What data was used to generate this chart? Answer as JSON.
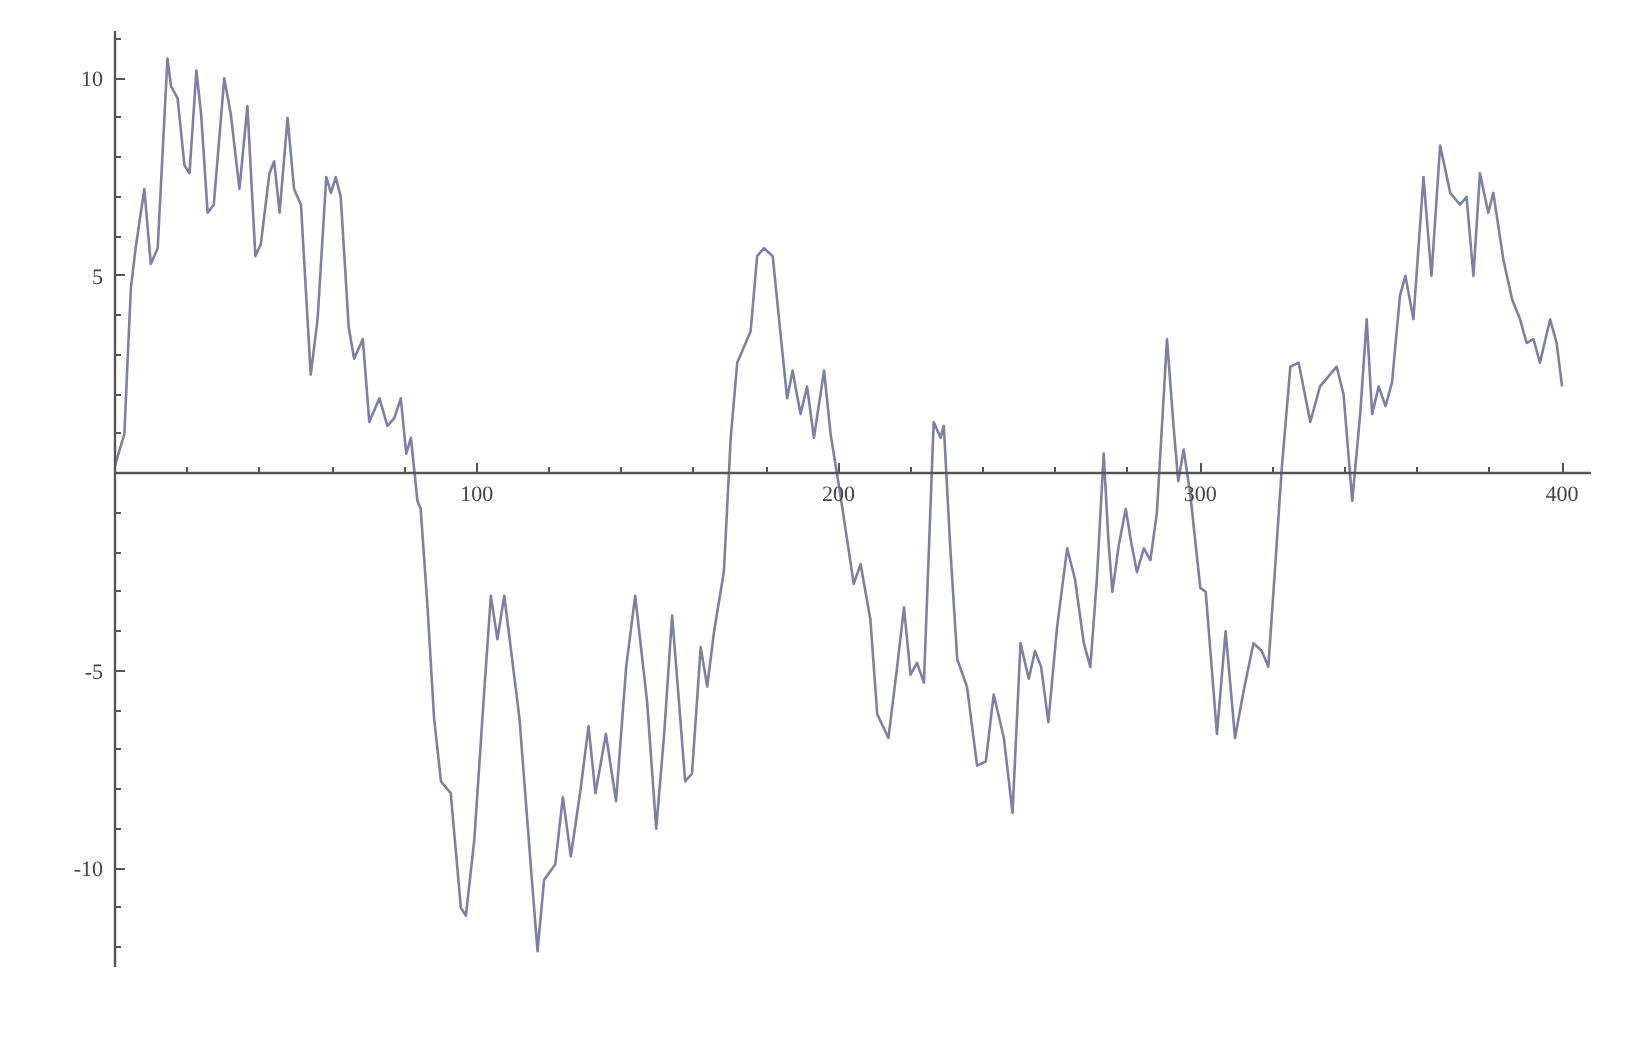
{
  "chart_data": {
    "type": "line",
    "x": [
      0,
      2.6,
      3.5,
      4.4,
      5.7,
      8.1,
      9.9,
      11.8,
      14.5,
      15.5,
      17.3,
      19.2,
      20.6,
      22.5,
      23.8,
      25.6,
      27.3,
      30.2,
      32,
      34.4,
      36.6,
      38.8,
      40.3,
      42.7,
      44,
      45.5,
      47.7,
      49.5,
      51.4,
      54.1,
      56,
      58.4,
      59.7,
      61,
      62.4,
      64.6,
      66.1,
      68.5,
      70.3,
      73.1,
      75.3,
      77.2,
      79,
      80.5,
      81.8,
      83.6,
      84.5,
      86.4,
      88.2,
      90.1,
      92.8,
      95.6,
      97,
      99.3,
      102,
      103.9,
      105.7,
      107.6,
      111.8,
      114.9,
      116.8,
      118.6,
      121.7,
      123.8,
      126,
      128.7,
      130.9,
      132.8,
      135.7,
      138.5,
      141.3,
      143.8,
      147.1,
      149.6,
      151.8,
      154,
      156,
      157.6,
      159.5,
      161.9,
      163.7,
      165.6,
      168.3,
      170.2,
      172,
      175.7,
      177.5,
      179.4,
      181.8,
      184,
      185.8,
      187.3,
      189.5,
      191.3,
      193.2,
      196,
      197.8,
      200.6,
      204.2,
      206.1,
      208.8,
      210.7,
      213.8,
      216.2,
      218.1,
      219.9,
      221.7,
      223.6,
      226.3,
      228.2,
      229.1,
      230.9,
      232.8,
      235.5,
      238.3,
      240.7,
      242.9,
      245.7,
      248.1,
      250.3,
      252.6,
      254.3,
      256,
      258,
      260.4,
      263.2,
      265.4,
      267.8,
      269.6,
      271.4,
      273.3,
      274.6,
      275.7,
      277.5,
      279.4,
      281,
      282.5,
      284.4,
      286.2,
      288,
      290.8,
      292.6,
      293.9,
      295.4,
      297.2,
      300,
      301.5,
      304.6,
      307,
      309.6,
      312,
      314.7,
      317,
      318.8,
      320.3,
      322.5,
      324.9,
      327.2,
      330.4,
      333.1,
      337.7,
      339.6,
      342,
      344.2,
      346,
      347.5,
      349.3,
      351.2,
      353,
      355.2,
      356.7,
      358.9,
      361.7,
      363.9,
      366.3,
      369.1,
      371.8,
      373.6,
      375.5,
      377.3,
      379.6,
      381,
      383.8,
      386.2,
      388.4,
      390.2,
      392.1,
      393.9,
      396.7,
      398.5,
      400
    ],
    "values": [
      0.2,
      1.0,
      2.9,
      4.7,
      5.7,
      7.2,
      5.3,
      5.7,
      10.5,
      9.8,
      9.5,
      7.8,
      7.6,
      10.2,
      9.1,
      6.6,
      6.8,
      10.0,
      9.1,
      7.2,
      9.3,
      5.5,
      5.8,
      7.6,
      7.9,
      6.6,
      9.0,
      7.2,
      6.8,
      2.5,
      3.9,
      7.5,
      7.1,
      7.5,
      7.0,
      3.7,
      2.9,
      3.4,
      1.3,
      1.9,
      1.2,
      1.4,
      1.9,
      0.5,
      0.9,
      -0.7,
      -0.9,
      -3.4,
      -6.2,
      -7.8,
      -8.1,
      -11.0,
      -11.2,
      -9.3,
      -5.6,
      -3.1,
      -4.2,
      -3.1,
      -6.2,
      -9.9,
      -12.1,
      -10.3,
      -9.9,
      -8.2,
      -9.7,
      -8.0,
      -6.4,
      -8.1,
      -6.6,
      -8.3,
      -4.9,
      -3.1,
      -5.8,
      -9.0,
      -6.6,
      -3.6,
      -5.9,
      -7.8,
      -7.6,
      -4.4,
      -5.4,
      -4.0,
      -2.5,
      0.9,
      2.8,
      3.6,
      5.5,
      5.7,
      5.5,
      3.5,
      1.9,
      2.6,
      1.5,
      2.2,
      0.9,
      2.6,
      1.0,
      -0.6,
      -2.8,
      -2.3,
      -3.7,
      -6.1,
      -6.7,
      -4.9,
      -3.4,
      -5.1,
      -4.8,
      -5.3,
      1.3,
      0.9,
      1.2,
      -1.9,
      -4.7,
      -5.4,
      -7.4,
      -7.3,
      -5.6,
      -6.7,
      -8.6,
      -4.3,
      -5.2,
      -4.5,
      -4.9,
      -6.3,
      -3.9,
      -1.9,
      -2.7,
      -4.3,
      -4.9,
      -2.7,
      0.5,
      -1.7,
      -3.0,
      -1.8,
      -0.9,
      -1.8,
      -2.5,
      -1.9,
      -2.2,
      -1.0,
      3.4,
      1.2,
      -0.2,
      0.6,
      -0.5,
      -2.9,
      -3.0,
      -6.6,
      -4.0,
      -6.7,
      -5.5,
      -4.3,
      -4.5,
      -4.9,
      -2.9,
      0.1,
      2.7,
      2.8,
      1.3,
      2.2,
      2.7,
      2.0,
      -0.7,
      1.5,
      3.9,
      1.5,
      2.2,
      1.7,
      2.3,
      4.5,
      5.0,
      3.9,
      7.5,
      5.0,
      8.3,
      7.1,
      6.8,
      7.0,
      5.0,
      7.6,
      6.6,
      7.1,
      5.4,
      4.4,
      3.9,
      3.3,
      3.4,
      2.8,
      3.9,
      3.3,
      2.2
    ],
    "color": "#7d80a6",
    "xlim": [
      0,
      408
    ],
    "ylim": [
      -12.5,
      11.2
    ],
    "xticks": [
      {
        "value": 20,
        "label": null
      },
      {
        "value": 40,
        "label": null
      },
      {
        "value": 60,
        "label": null
      },
      {
        "value": 80,
        "label": null
      },
      100,
      {
        "value": 120,
        "label": null
      },
      {
        "value": 140,
        "label": null
      },
      {
        "value": 160,
        "label": null
      },
      {
        "value": 180,
        "label": null
      },
      200,
      {
        "value": 220,
        "label": null
      },
      {
        "value": 240,
        "label": null
      },
      {
        "value": 260,
        "label": null
      },
      {
        "value": 280,
        "label": null
      },
      300,
      {
        "value": 320,
        "label": null
      },
      {
        "value": 340,
        "label": null
      },
      {
        "value": 360,
        "label": null
      },
      {
        "value": 380,
        "label": null
      },
      400
    ],
    "yticks": [
      {
        "value": -12,
        "label": null
      },
      {
        "value": -11,
        "label": null
      },
      -10,
      {
        "value": -9,
        "label": null
      },
      {
        "value": -8,
        "label": null
      },
      {
        "value": -7,
        "label": null
      },
      {
        "value": -6,
        "label": null
      },
      -5,
      {
        "value": -4,
        "label": null
      },
      {
        "value": -3,
        "label": null
      },
      {
        "value": -2,
        "label": null
      },
      {
        "value": -1,
        "label": null
      },
      {
        "value": 1,
        "label": null
      },
      {
        "value": 2,
        "label": null
      },
      {
        "value": 3,
        "label": null
      },
      {
        "value": 4,
        "label": null
      },
      5,
      {
        "value": 6,
        "label": null
      },
      {
        "value": 7,
        "label": null
      },
      {
        "value": 8,
        "label": null
      },
      {
        "value": 9,
        "label": null
      },
      10,
      {
        "value": 11,
        "label": null
      }
    ],
    "grid": false
  }
}
